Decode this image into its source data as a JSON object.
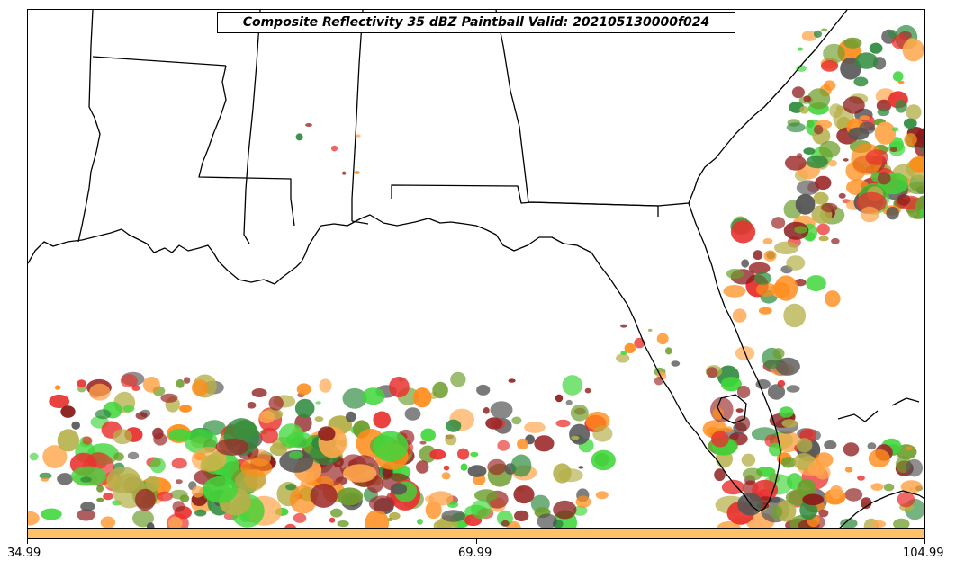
{
  "title": "Composite Reflectivity 35 dBZ Paintball Valid: 202105130000f024",
  "colorbar": {
    "color": "#ffc266",
    "ticks": [
      "34.99",
      "69.99",
      "104.99"
    ]
  },
  "chart_data": {
    "type": "map",
    "variable": "Composite Reflectivity",
    "threshold_dbz": 35,
    "style": "Paintball",
    "valid": "202105130000f024",
    "region": "Southeastern United States / Gulf of Mexico / Florida",
    "colorbar_ticks": [
      34.99,
      69.99,
      104.99
    ],
    "member_colors": [
      "#e8322f",
      "#ff8c1a",
      "#6e9e2e",
      "#3fd63a",
      "#9c2a2a",
      "#b5b04a",
      "#555555",
      "#ffa64d",
      "#2e8b3e",
      "#8b1a1a"
    ],
    "notable_storm_areas": [
      "southern Gulf of Mexico band",
      "South Florida / Lake Okeechobee",
      "western Atlantic off Georgia and South Carolina"
    ]
  }
}
